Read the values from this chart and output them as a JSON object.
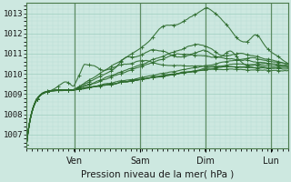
{
  "title": "Pression niveau de la mer( hPa )",
  "ylim": [
    1006.3,
    1013.5
  ],
  "yticks": [
    1007,
    1008,
    1009,
    1010,
    1011,
    1012,
    1013
  ],
  "bg_color": "#cde8e0",
  "grid_color_major": "#9ecfbf",
  "grid_color_minor": "#b8ddd4",
  "line_color": "#2d6b2d",
  "day_labels": [
    "Ven",
    "Sam",
    "Dim",
    "Lun"
  ],
  "day_positions": [
    0.185,
    0.435,
    0.685,
    0.935
  ],
  "xlim": [
    0.0,
    1.0
  ]
}
